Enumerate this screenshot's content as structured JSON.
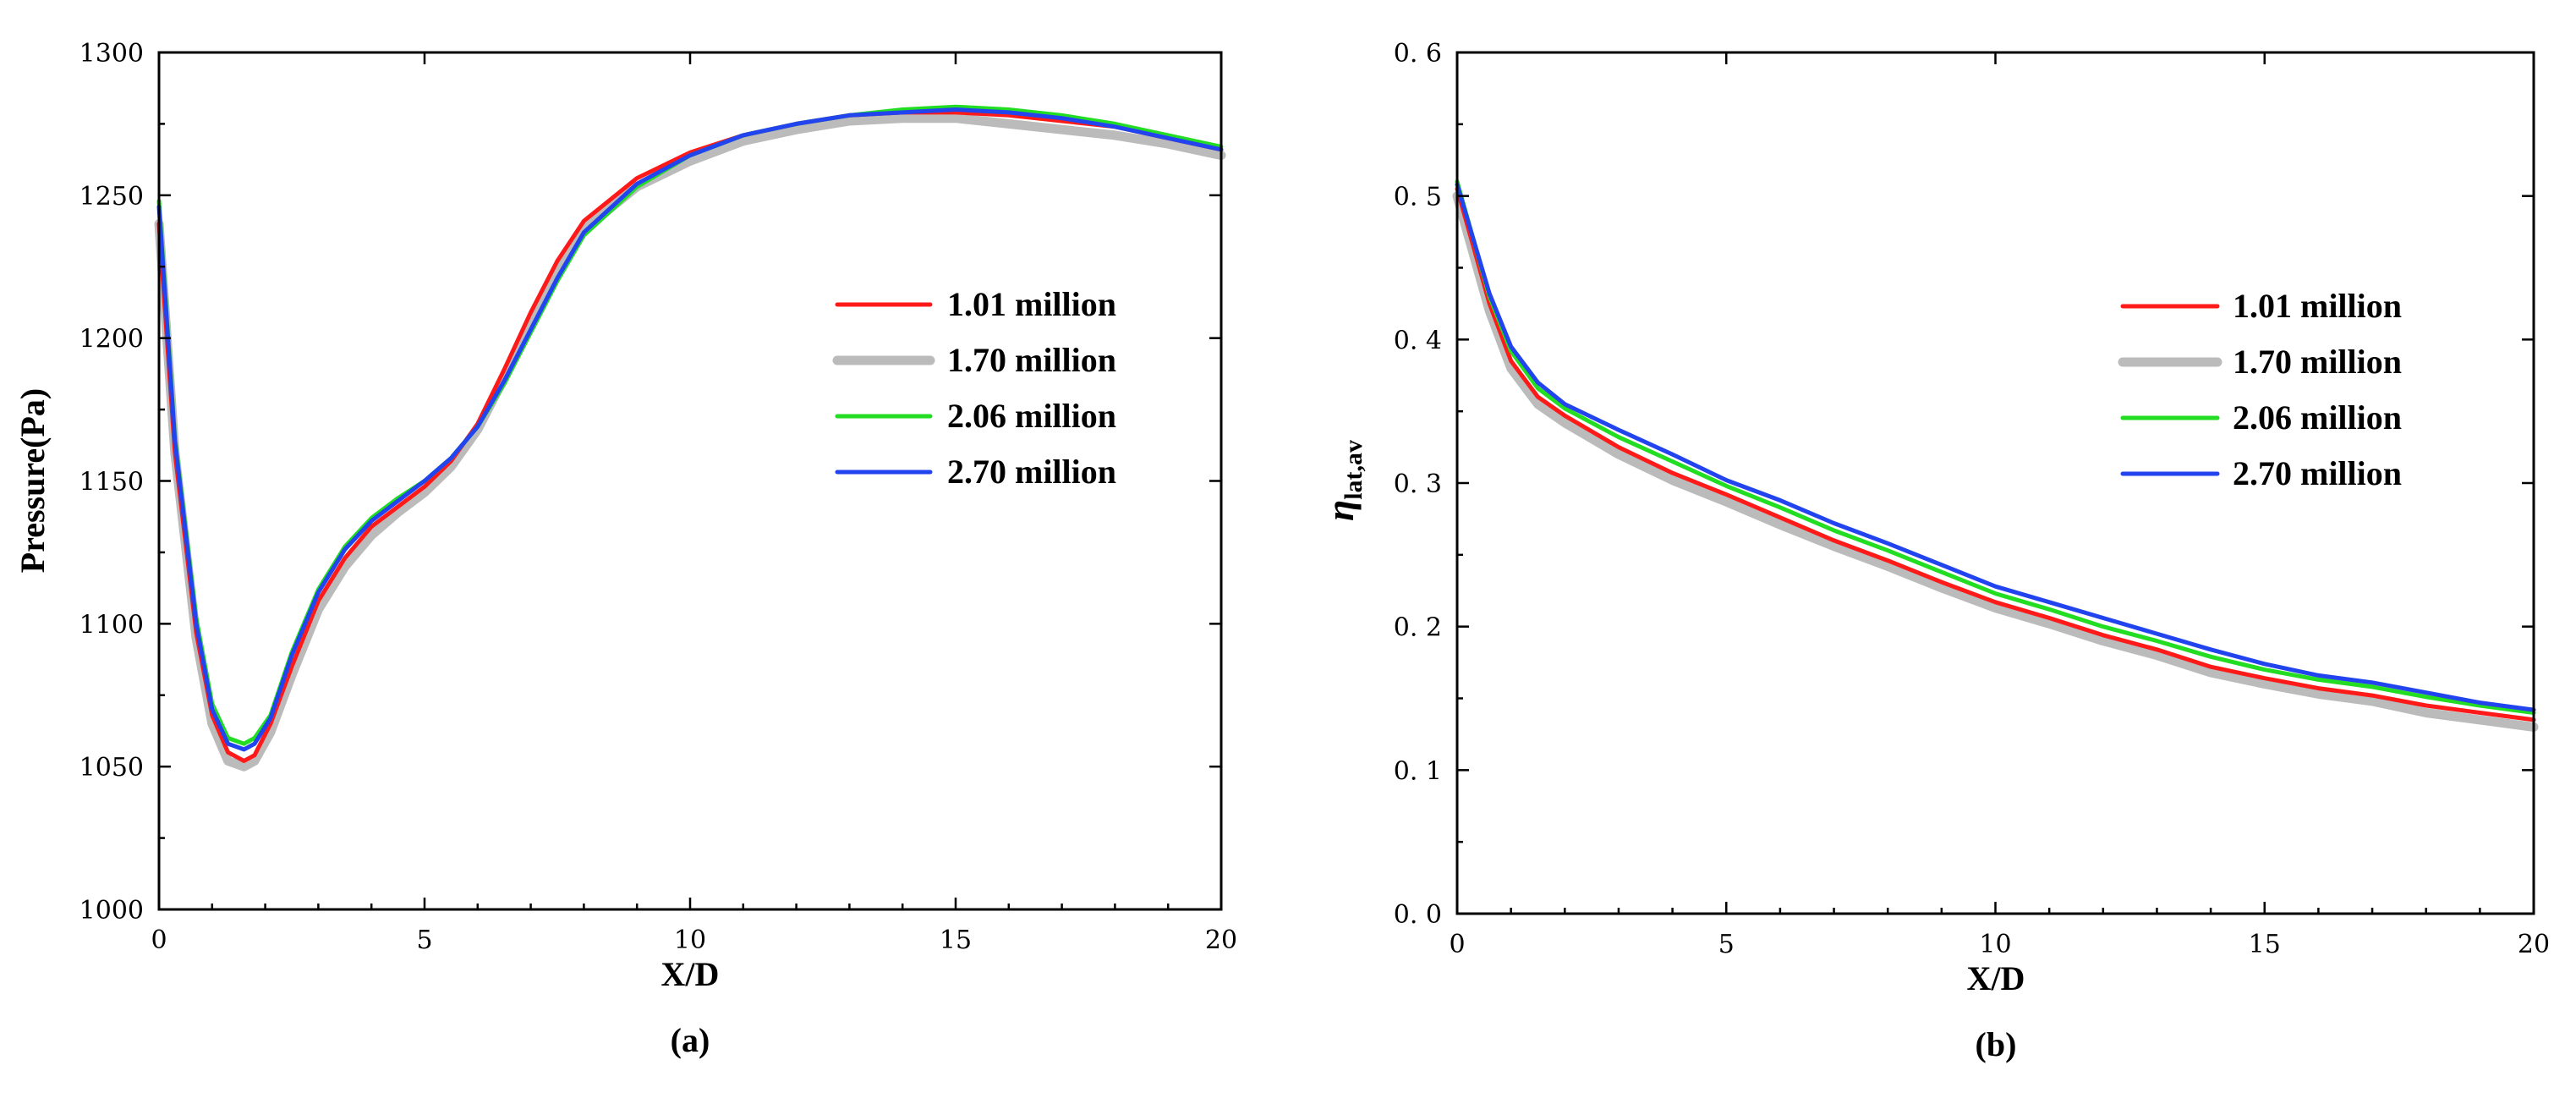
{
  "chart_data": [
    {
      "type": "line",
      "panel_label": "(a)",
      "xlabel": "X/D",
      "ylabel": "Pressure(Pa)",
      "xlim": [
        0,
        20
      ],
      "ylim": [
        1000,
        1300
      ],
      "xticks": [
        0,
        5,
        10,
        15,
        20
      ],
      "yticks": [
        1000,
        1050,
        1100,
        1150,
        1200,
        1250,
        1300
      ],
      "tick_labels_x": [
        "0",
        "5",
        "10",
        "15",
        "20"
      ],
      "tick_labels_y": [
        "1000",
        "1050",
        "1100",
        "1150",
        "1200",
        "1250",
        "1300"
      ],
      "legend_position": "center-right",
      "series": [
        {
          "name": "1.70 million",
          "color": "#bbbbbb",
          "x": [
            0,
            0.3,
            0.7,
            1.0,
            1.3,
            1.6,
            1.8,
            2.1,
            2.5,
            3.0,
            3.5,
            4.0,
            4.5,
            5.0,
            5.5,
            6.0,
            6.5,
            7.0,
            7.5,
            8.0,
            9.0,
            10.0,
            11.0,
            12.0,
            13.0,
            14.0,
            15.0,
            16.0,
            17.0,
            18.0,
            19.0,
            20.0
          ],
          "values": [
            1240,
            1160,
            1095,
            1065,
            1052,
            1050,
            1052,
            1062,
            1082,
            1105,
            1120,
            1131,
            1139,
            1146,
            1155,
            1168,
            1186,
            1206,
            1224,
            1238,
            1253,
            1262,
            1269,
            1273,
            1276,
            1277,
            1277,
            1275,
            1273,
            1271,
            1268,
            1264
          ]
        },
        {
          "name": "1.01 million",
          "color": "#ff1a1a",
          "x": [
            0,
            0.3,
            0.7,
            1.0,
            1.3,
            1.6,
            1.8,
            2.1,
            2.5,
            3.0,
            3.5,
            4.0,
            4.5,
            5.0,
            5.5,
            6.0,
            6.5,
            7.0,
            7.5,
            8.0,
            9.0,
            10.0,
            11.0,
            12.0,
            13.0,
            14.0,
            15.0,
            16.0,
            17.0,
            18.0,
            19.0,
            20.0
          ],
          "values": [
            1240,
            1160,
            1097,
            1068,
            1055,
            1052,
            1054,
            1065,
            1085,
            1108,
            1123,
            1134,
            1141,
            1148,
            1157,
            1170,
            1189,
            1209,
            1227,
            1241,
            1256,
            1265,
            1271,
            1275,
            1278,
            1279,
            1279,
            1278,
            1276,
            1274,
            1270,
            1266
          ]
        },
        {
          "name": "2.06 million",
          "color": "#22dd22",
          "x": [
            0,
            0.3,
            0.7,
            1.0,
            1.3,
            1.6,
            1.8,
            2.1,
            2.5,
            3.0,
            3.5,
            4.0,
            4.5,
            5.0,
            5.5,
            6.0,
            6.5,
            7.0,
            7.5,
            8.0,
            9.0,
            10.0,
            11.0,
            12.0,
            13.0,
            14.0,
            15.0,
            16.0,
            17.0,
            18.0,
            19.0,
            20.0
          ],
          "values": [
            1248,
            1165,
            1102,
            1072,
            1060,
            1058,
            1060,
            1068,
            1090,
            1112,
            1127,
            1137,
            1144,
            1150,
            1158,
            1169,
            1184,
            1202,
            1220,
            1236,
            1253,
            1264,
            1271,
            1275,
            1278,
            1280,
            1281,
            1280,
            1278,
            1275,
            1271,
            1267
          ]
        },
        {
          "name": "2.70 million",
          "color": "#2244ee",
          "x": [
            0,
            0.3,
            0.7,
            1.0,
            1.3,
            1.6,
            1.8,
            2.1,
            2.5,
            3.0,
            3.5,
            4.0,
            4.5,
            5.0,
            5.5,
            6.0,
            6.5,
            7.0,
            7.5,
            8.0,
            9.0,
            10.0,
            11.0,
            12.0,
            13.0,
            14.0,
            15.0,
            16.0,
            17.0,
            18.0,
            19.0,
            20.0
          ],
          "values": [
            1246,
            1164,
            1100,
            1070,
            1058,
            1056,
            1058,
            1067,
            1089,
            1111,
            1126,
            1136,
            1143,
            1150,
            1158,
            1169,
            1185,
            1203,
            1221,
            1237,
            1254,
            1264,
            1271,
            1275,
            1278,
            1279,
            1280,
            1279,
            1277,
            1274,
            1270,
            1266
          ]
        }
      ]
    },
    {
      "type": "line",
      "panel_label": "(b)",
      "xlabel": "X/D",
      "ylabel_main": "η",
      "ylabel_sub": "lat,av",
      "xlim": [
        0,
        20
      ],
      "ylim": [
        0,
        0.6
      ],
      "xticks": [
        0,
        5,
        10,
        15,
        20
      ],
      "yticks": [
        0,
        0.1,
        0.2,
        0.3,
        0.4,
        0.5,
        0.6
      ],
      "tick_labels_x": [
        "0",
        "5",
        "10",
        "15",
        "20"
      ],
      "tick_labels_y": [
        "0. 0",
        "0. 1",
        "0. 2",
        "0. 3",
        "0. 4",
        "0. 5",
        "0. 6"
      ],
      "legend_position": "top-right",
      "series": [
        {
          "name": "1.70 million",
          "color": "#bbbbbb",
          "x": [
            0,
            0.3,
            0.6,
            1.0,
            1.5,
            2.0,
            3.0,
            4.0,
            5.0,
            6.0,
            7.0,
            8.0,
            9.0,
            10.0,
            11.0,
            12.0,
            13.0,
            14.0,
            15.0,
            16.0,
            17.0,
            18.0,
            19.0,
            20.0
          ],
          "values": [
            0.5,
            0.46,
            0.42,
            0.38,
            0.355,
            0.342,
            0.32,
            0.302,
            0.287,
            0.271,
            0.256,
            0.242,
            0.227,
            0.213,
            0.202,
            0.19,
            0.18,
            0.168,
            0.16,
            0.153,
            0.148,
            0.14,
            0.135,
            0.13
          ]
        },
        {
          "name": "1.01 million",
          "color": "#ff1a1a",
          "x": [
            0,
            0.3,
            0.6,
            1.0,
            1.5,
            2.0,
            3.0,
            4.0,
            5.0,
            6.0,
            7.0,
            8.0,
            9.0,
            10.0,
            11.0,
            12.0,
            13.0,
            14.0,
            15.0,
            16.0,
            17.0,
            18.0,
            19.0,
            20.0
          ],
          "values": [
            0.505,
            0.465,
            0.425,
            0.385,
            0.36,
            0.347,
            0.325,
            0.307,
            0.292,
            0.276,
            0.26,
            0.246,
            0.231,
            0.217,
            0.206,
            0.194,
            0.184,
            0.172,
            0.164,
            0.157,
            0.152,
            0.145,
            0.14,
            0.135
          ]
        },
        {
          "name": "2.06 million",
          "color": "#22dd22",
          "x": [
            0,
            0.3,
            0.6,
            1.0,
            1.5,
            2.0,
            3.0,
            4.0,
            5.0,
            6.0,
            7.0,
            8.0,
            9.0,
            10.0,
            11.0,
            12.0,
            13.0,
            14.0,
            15.0,
            16.0,
            17.0,
            18.0,
            19.0,
            20.0
          ],
          "values": [
            0.51,
            0.47,
            0.43,
            0.392,
            0.366,
            0.352,
            0.332,
            0.315,
            0.298,
            0.283,
            0.267,
            0.253,
            0.238,
            0.223,
            0.212,
            0.2,
            0.19,
            0.179,
            0.17,
            0.163,
            0.158,
            0.151,
            0.145,
            0.14
          ]
        },
        {
          "name": "2.70 million",
          "color": "#2244ee",
          "x": [
            0,
            0.3,
            0.6,
            1.0,
            1.5,
            2.0,
            3.0,
            4.0,
            5.0,
            6.0,
            7.0,
            8.0,
            9.0,
            10.0,
            11.0,
            12.0,
            13.0,
            14.0,
            15.0,
            16.0,
            17.0,
            18.0,
            19.0,
            20.0
          ],
          "values": [
            0.508,
            0.47,
            0.432,
            0.395,
            0.37,
            0.355,
            0.337,
            0.32,
            0.302,
            0.288,
            0.272,
            0.258,
            0.243,
            0.228,
            0.217,
            0.206,
            0.195,
            0.184,
            0.174,
            0.166,
            0.161,
            0.154,
            0.147,
            0.142
          ]
        }
      ]
    }
  ],
  "legend": {
    "entries": [
      {
        "label": "1.01 million",
        "color": "#ff1a1a"
      },
      {
        "label": "1.70 million",
        "color": "#bbbbbb"
      },
      {
        "label": "2.06 million",
        "color": "#22dd22"
      },
      {
        "label": "2.70 million",
        "color": "#2244ee"
      }
    ]
  }
}
